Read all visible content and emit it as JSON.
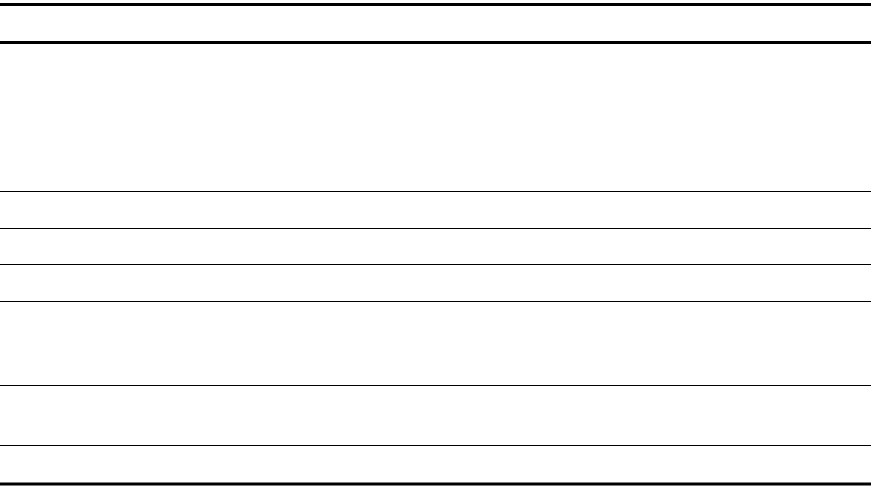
{
  "table": {
    "header": [],
    "rows": [
      [],
      [],
      [],
      [],
      [],
      [],
      []
    ]
  }
}
